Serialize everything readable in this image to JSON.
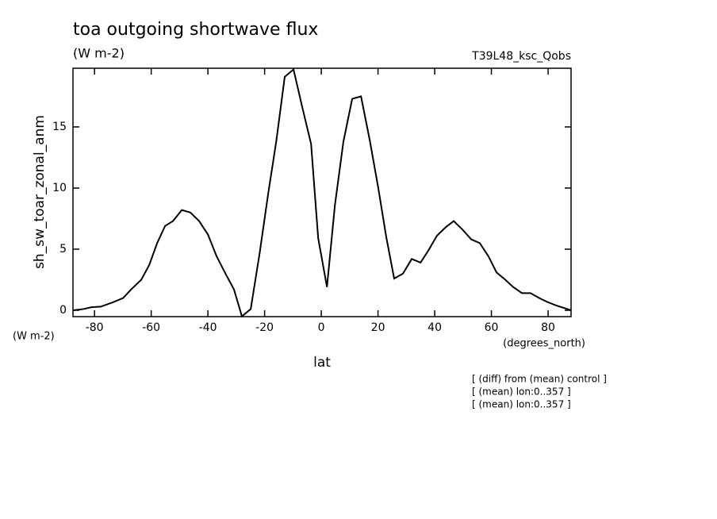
{
  "chart_data": {
    "type": "line",
    "title": "toa outgoing shortwave flux",
    "subtitle": "(W m-2)",
    "run_label": "T39L48_ksc_Qobs",
    "y_label": "sh_sw_toar_zonal_anm",
    "y_units": "(W m-2)",
    "x_label": "lat",
    "x_units": "(degrees_north)",
    "notes": [
      "[ (diff) from (mean) control ]",
      "[ (mean) lon:0..357 ]",
      "[ (mean) lon:0..357 ]"
    ],
    "x": [
      -87.6,
      -83.9,
      -81.1,
      -77.8,
      -74.1,
      -69.9,
      -67.1,
      -63.5,
      -60.7,
      -57.9,
      -55.1,
      -52.3,
      -49.2,
      -46.2,
      -43.1,
      -40.0,
      -36.9,
      -33.8,
      -30.8,
      -28.0,
      -24.9,
      -21.8,
      -18.7,
      -15.9,
      -12.9,
      -9.8,
      -6.7,
      -3.6,
      -1.1,
      2.0,
      4.8,
      7.8,
      10.9,
      14.0,
      17.1,
      20.1,
      22.9,
      25.7,
      28.8,
      31.9,
      35.0,
      37.8,
      40.8,
      43.9,
      46.7,
      49.8,
      52.9,
      55.9,
      59.0,
      61.8,
      64.9,
      67.7,
      70.8,
      73.8,
      76.9,
      80.0,
      82.8,
      88.1
    ],
    "series": [
      {
        "name": "sh_sw_toar_zonal_anm",
        "color": "#000000",
        "values": [
          0.0,
          0.1,
          0.25,
          0.3,
          0.6,
          1.0,
          1.7,
          2.5,
          3.7,
          5.5,
          6.9,
          7.3,
          8.2,
          8.0,
          7.3,
          6.2,
          4.4,
          3.0,
          1.7,
          -0.5,
          0.1,
          4.6,
          9.6,
          13.8,
          19.1,
          19.7,
          16.6,
          13.6,
          5.9,
          1.9,
          8.6,
          13.8,
          17.3,
          17.5,
          13.9,
          10.0,
          6.0,
          2.6,
          3.0,
          4.2,
          3.9,
          4.9,
          6.1,
          6.8,
          7.3,
          6.6,
          5.8,
          5.5,
          4.4,
          3.1,
          2.5,
          1.9,
          1.4,
          1.4,
          1.0,
          0.65,
          0.4,
          0.0
        ]
      }
    ],
    "xlim": [
      -87.6,
      88.1
    ],
    "ylim": [
      -0.52,
      19.8
    ],
    "xticks": [
      -80,
      -60,
      -40,
      -20,
      0,
      20,
      40,
      60,
      80
    ],
    "yticks": [
      0,
      5,
      10,
      15
    ],
    "grid": false
  }
}
